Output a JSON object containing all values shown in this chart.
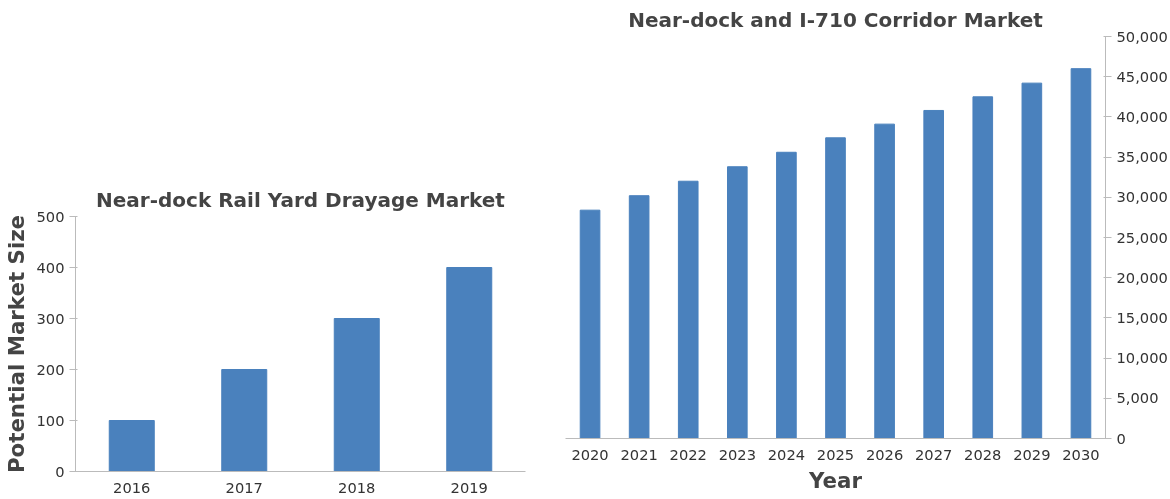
{
  "chart_data": [
    {
      "type": "bar",
      "title": "Near-dock Rail Yard Drayage Market",
      "ylabel": "Potential Market Size",
      "categories": [
        "2016",
        "2017",
        "2018",
        "2019"
      ],
      "values": [
        100,
        200,
        300,
        400
      ],
      "color": "#4a81bd",
      "ylim": [
        0,
        500
      ],
      "yticks": [
        0,
        100,
        200,
        300,
        400,
        500
      ],
      "grid": false
    },
    {
      "type": "bar",
      "title": "Near-dock and I-710 Corridor Market",
      "xlabel": "Year",
      "categories": [
        "2020",
        "2021",
        "2022",
        "2023",
        "2024",
        "2025",
        "2026",
        "2027",
        "2028",
        "2029",
        "2030"
      ],
      "series": [
        {
          "color": "#4a81bd",
          "axis": "y2",
          "values": [
            28400,
            30200,
            32000,
            33800,
            35600,
            37400,
            39100,
            40800,
            42500,
            44200,
            46000
          ]
        }
      ],
      "y2lim": [
        0,
        50000
      ],
      "y2ticks": [
        0,
        {
          "value": 5000,
          "label": "5,000"
        },
        {
          "value": 10000,
          "label": "10,000"
        },
        {
          "value": 15000,
          "label": "15,000"
        },
        {
          "value": 20000,
          "label": "20,000"
        },
        {
          "value": 25000,
          "label": "25,000"
        },
        {
          "value": 30000,
          "label": "30,000"
        },
        {
          "value": 35000,
          "label": "35,000"
        },
        {
          "value": 40000,
          "label": "40,000"
        },
        {
          "value": 45000,
          "label": "45,000"
        },
        {
          "value": 50000,
          "label": "50,000"
        }
      ],
      "grid": false
    }
  ]
}
